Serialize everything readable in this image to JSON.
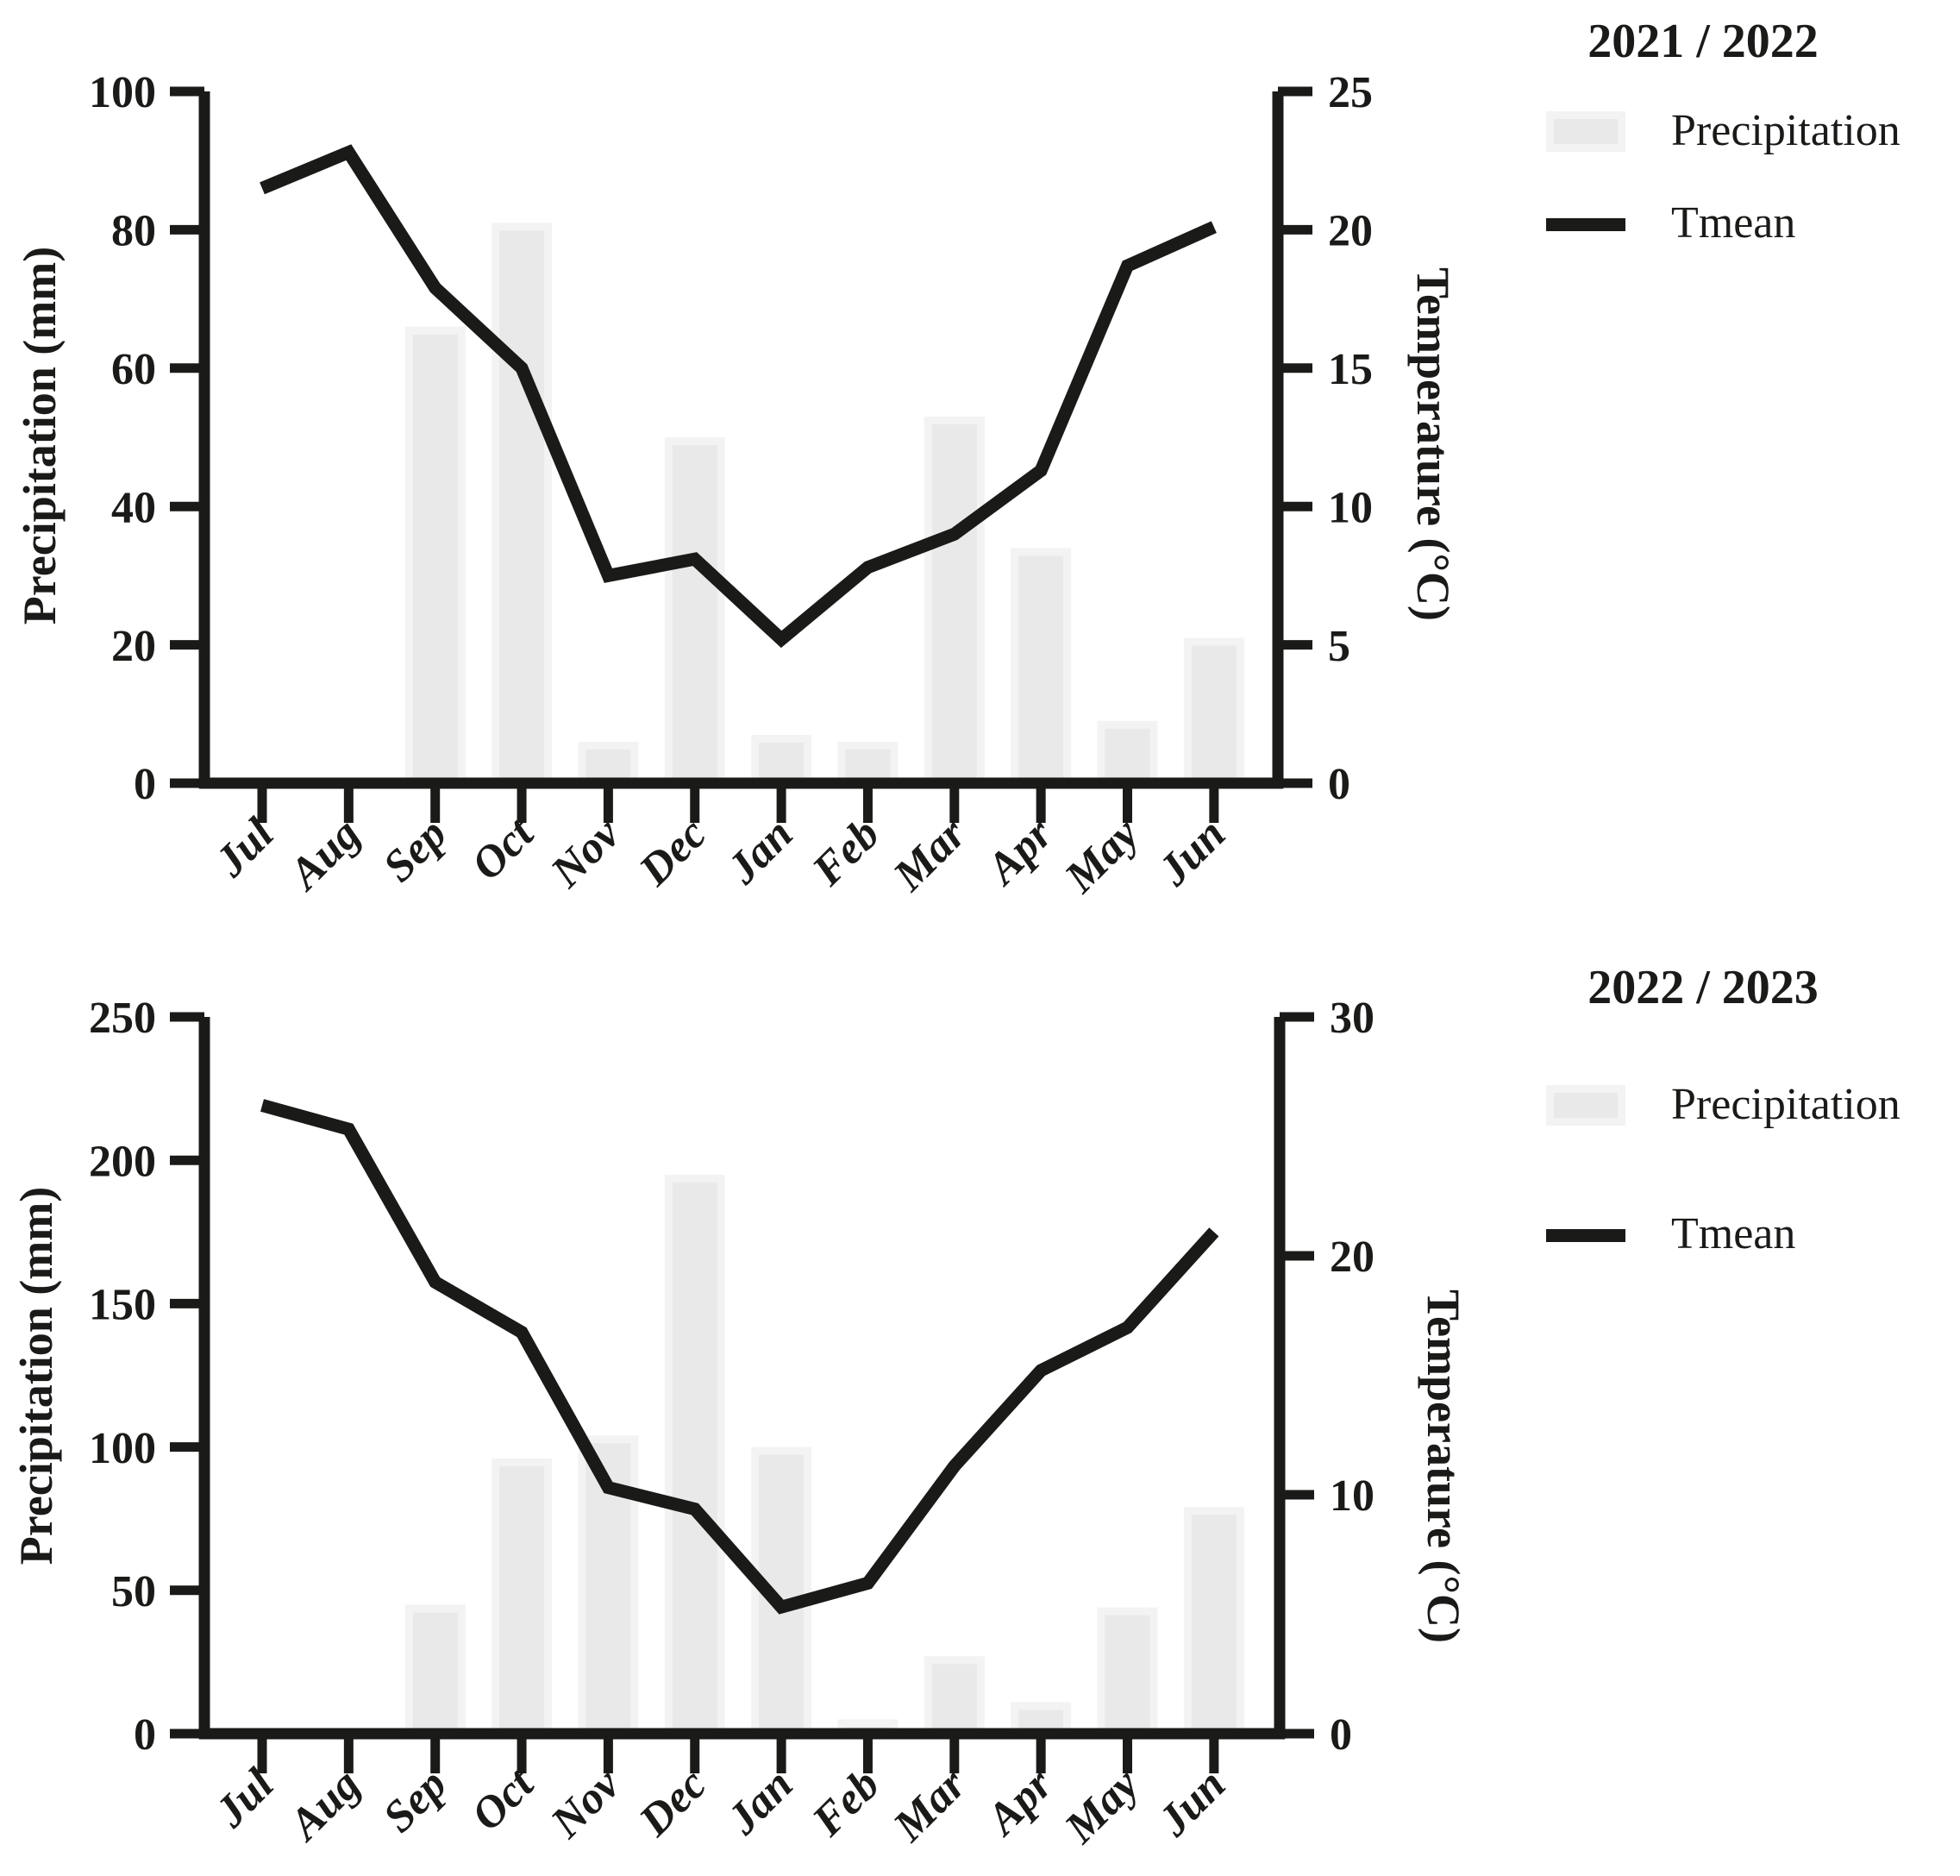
{
  "figure_type": "dual-panel climate chart (precipitation bars + mean temperature line)",
  "style": {
    "background": "#ffffff",
    "axis_color": "#1a1a18",
    "line_color": "#1a1a18",
    "text_color": "#1a1a18",
    "bar_fill": "#e9e9e9",
    "bar_edge": "#f3f3f3"
  },
  "chart_data": [
    {
      "type": "bar",
      "subtype": "bar+line dual axis",
      "legend_title": "2021 / 2022",
      "categories": [
        "Jul",
        "Aug",
        "Sep",
        "Oct",
        "Nov",
        "Dec",
        "Jan",
        "Feb",
        "Mar",
        "Apr",
        "May",
        "Jun"
      ],
      "series": [
        {
          "name": "Precipitation",
          "type": "bar",
          "axis": "left",
          "unit": "mm",
          "values": [
            0,
            0,
            66,
            81,
            6,
            50,
            7,
            6,
            53,
            34,
            9,
            21
          ]
        },
        {
          "name": "Tmean",
          "type": "line",
          "axis": "right",
          "unit": "°C",
          "values": [
            21.5,
            22.8,
            17.9,
            15.0,
            7.5,
            8.1,
            5.2,
            7.8,
            9.0,
            11.3,
            18.7,
            20.1
          ]
        }
      ],
      "left_axis": {
        "label": "Precipitation (mm)",
        "range": [
          0,
          100
        ],
        "ticks": [
          0,
          20,
          40,
          60,
          80,
          100
        ]
      },
      "right_axis": {
        "label": "Temperature (°C)",
        "range": [
          0,
          25
        ],
        "ticks": [
          0,
          5,
          10,
          15,
          20,
          25
        ]
      },
      "grid": false,
      "legend_position": "top-right outside"
    },
    {
      "type": "bar",
      "subtype": "bar+line dual axis",
      "legend_title": "2022 / 2023",
      "categories": [
        "Jul",
        "Aug",
        "Sep",
        "Oct",
        "Nov",
        "Dec",
        "Jan",
        "Feb",
        "Mar",
        "Apr",
        "May",
        "Jun"
      ],
      "series": [
        {
          "name": "Precipitation",
          "type": "bar",
          "axis": "left",
          "unit": "mm",
          "values": [
            0,
            0,
            45,
            96,
            104,
            195,
            100,
            5,
            27,
            11,
            44,
            79
          ]
        },
        {
          "name": "Tmean",
          "type": "line",
          "axis": "right",
          "unit": "°C",
          "values": [
            26.3,
            25.3,
            18.9,
            16.8,
            10.3,
            9.4,
            5.3,
            6.3,
            11.2,
            15.2,
            17.0,
            21.0
          ]
        }
      ],
      "left_axis": {
        "label": "Precipitation (mm)",
        "range": [
          0,
          250
        ],
        "ticks": [
          0,
          50,
          100,
          150,
          200,
          250
        ]
      },
      "right_axis": {
        "label": "Temperature (°C)",
        "range": [
          0,
          30
        ],
        "ticks": [
          0,
          10,
          20,
          30
        ]
      },
      "grid": false,
      "legend_position": "top-right outside"
    }
  ]
}
